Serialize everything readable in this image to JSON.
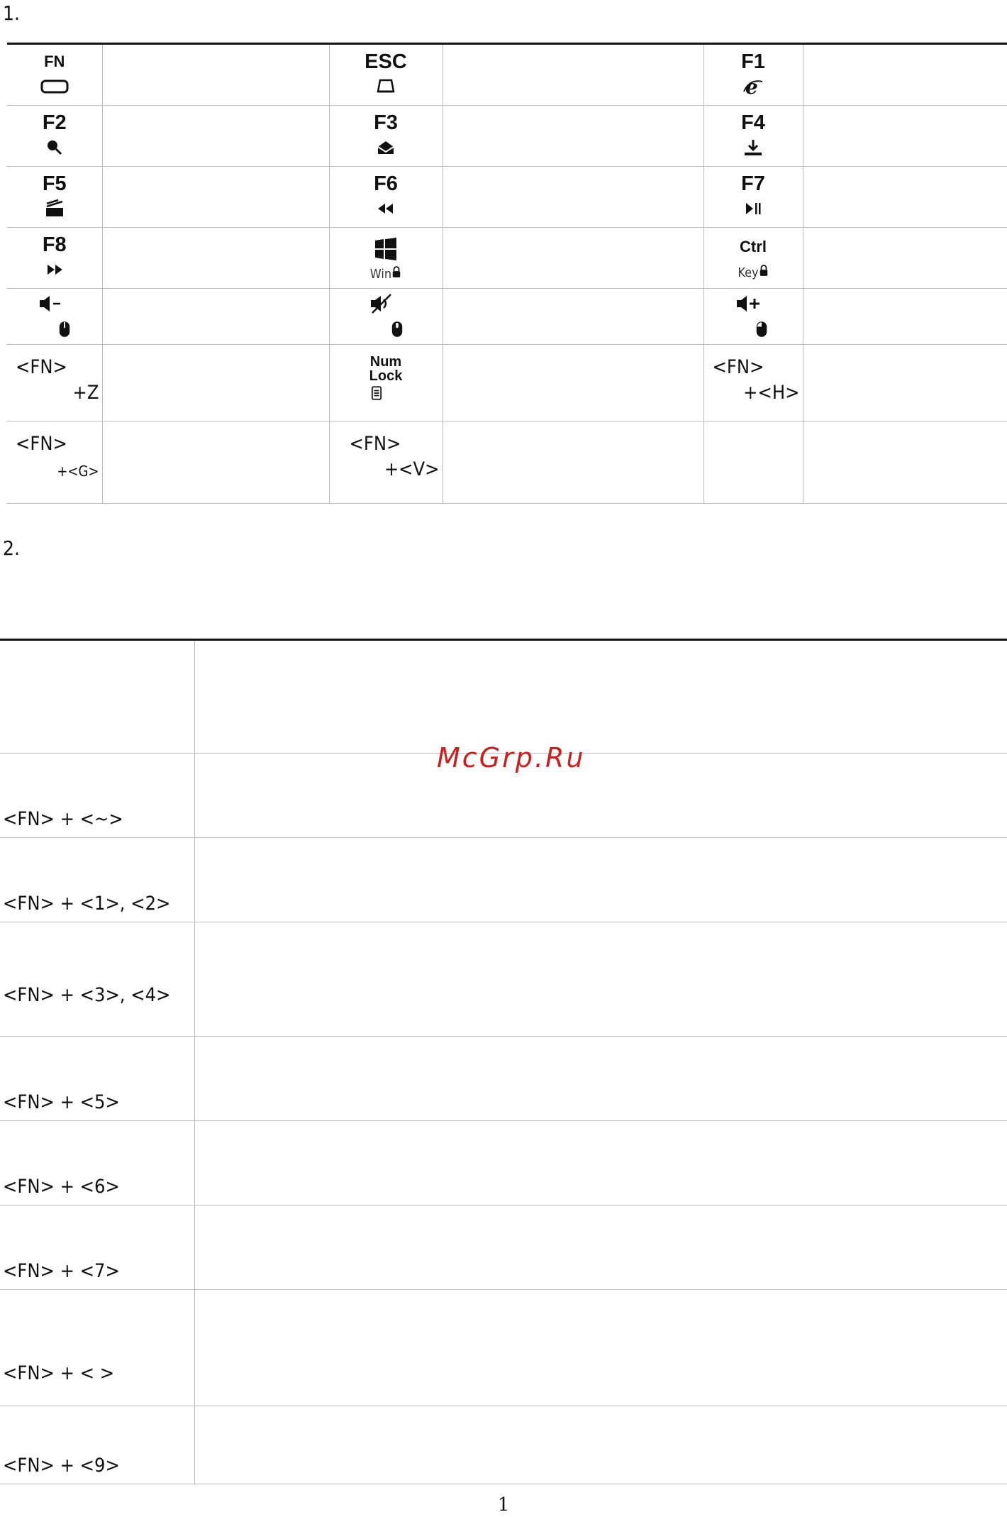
{
  "section1_number": "1.",
  "section2_number": "2.",
  "keys": {
    "fn": "FN",
    "esc": "ESC",
    "f1": "F1",
    "f2": "F2",
    "f3": "F3",
    "f4": "F4",
    "f5": "F5",
    "f6": "F6",
    "f7": "F7",
    "f8": "F8",
    "ctrl": "Ctrl",
    "win_lock": "Win",
    "key_lock": "Key",
    "num": "Num",
    "lock": "Lock"
  },
  "combos1": {
    "fn": "<FN>",
    "z": "+Z",
    "h": "+<H>",
    "g": "+<G>",
    "v": "+<V>"
  },
  "combos2": [
    "",
    "<FN> + <~>",
    "<FN> + <1>, <2>",
    "<FN> + <3>, <4>",
    "<FN> + <5>",
    "<FN> + <6>",
    "<FN> + <7>",
    "<FN> + < >",
    "<FN> + <9>"
  ],
  "watermark": "McGrp.Ru",
  "page_number": "1",
  "icons": [
    "fn-key-icon",
    "drive-icon",
    "ie-icon",
    "search-icon",
    "mail-icon",
    "download-icon",
    "music-icon",
    "rewind-icon",
    "play-pause-icon",
    "forward-icon",
    "windows-icon",
    "lock-icon",
    "volume-down-icon",
    "mute-icon",
    "volume-up-icon",
    "mouse-icon",
    "calculator-icon"
  ]
}
